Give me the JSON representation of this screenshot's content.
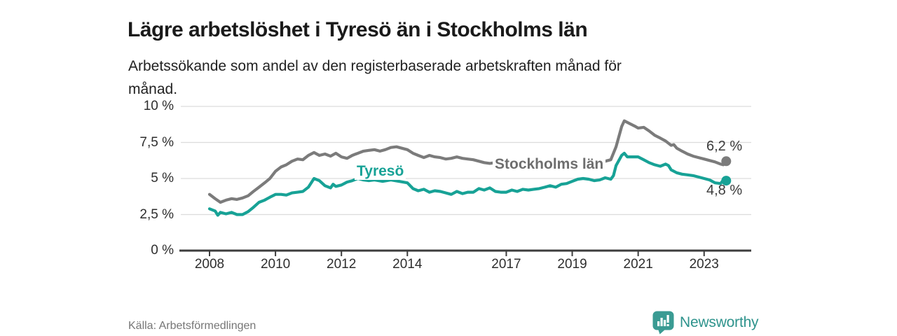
{
  "title": "Lägre arbetslöshet i Tyresö än i Stockholms län",
  "subtitle": "Arbetssökande som andel av den registerbaserade arbetskraften månad för månad.",
  "source": "Källa: Arbetsförmedlingen",
  "brand": {
    "name": "Newsworthy",
    "icon": "bar-chart-speech-bubble-icon",
    "color": "#2e938c"
  },
  "colors": {
    "tyreso": "#17a296",
    "stockholm": "#7b7b7b",
    "grid": "#dcdcdc",
    "axis": "#3d3d3d",
    "tick_text": "#2e2e2e",
    "title_text": "#1a1a1a"
  },
  "chart_data": {
    "type": "line",
    "title": "Lägre arbetslöshet i Tyresö än i Stockholms län",
    "xlabel": "",
    "ylabel": "Arbetssökande som andel av den registerbaserade arbetskraften",
    "xlim": [
      2008,
      2023.85
    ],
    "ylim": [
      0,
      10
    ],
    "grid": true,
    "legend_position": "inline-labels-on-lines",
    "y_ticks": [
      {
        "value": 0,
        "label": "0 %"
      },
      {
        "value": 2.5,
        "label": "2,5 %"
      },
      {
        "value": 5,
        "label": "5 %"
      },
      {
        "value": 7.5,
        "label": "7,5 %"
      },
      {
        "value": 10,
        "label": "10 %"
      }
    ],
    "x_ticks": [
      {
        "year": 2008,
        "label": "2008"
      },
      {
        "year": 2010,
        "label": "2010"
      },
      {
        "year": 2012,
        "label": "2012"
      },
      {
        "year": 2014,
        "label": "2014"
      },
      {
        "year": 2017,
        "label": "2017"
      },
      {
        "year": 2019,
        "label": "2019"
      },
      {
        "year": 2021,
        "label": "2021"
      },
      {
        "year": 2023,
        "label": "2023"
      }
    ],
    "series": [
      {
        "id": "stockholm",
        "name": "Stockholms län",
        "color": "#7b7b7b",
        "end_label": "6,2 %",
        "end_value": 6.2,
        "x": [
          2008.0,
          2008.17,
          2008.33,
          2008.5,
          2008.67,
          2008.83,
          2009.0,
          2009.17,
          2009.33,
          2009.5,
          2009.67,
          2009.83,
          2010.0,
          2010.17,
          2010.33,
          2010.5,
          2010.67,
          2010.83,
          2011.0,
          2011.17,
          2011.33,
          2011.5,
          2011.67,
          2011.83,
          2012.0,
          2012.17,
          2012.33,
          2012.5,
          2012.67,
          2012.83,
          2013.0,
          2013.17,
          2013.33,
          2013.5,
          2013.67,
          2013.83,
          2014.0,
          2014.17,
          2014.33,
          2014.5,
          2014.67,
          2014.83,
          2015.0,
          2015.17,
          2015.33,
          2015.5,
          2015.67,
          2015.83,
          2016.0,
          2016.17,
          2016.33,
          2016.5,
          2016.67,
          2016.83,
          2017.0,
          2017.5,
          2018.0,
          2018.5,
          2019.0,
          2019.5,
          2019.83,
          2020.0,
          2020.17,
          2020.33,
          2020.5,
          2020.58,
          2020.75,
          2020.92,
          2021.0,
          2021.17,
          2021.33,
          2021.5,
          2021.67,
          2021.83,
          2022.0,
          2022.08,
          2022.17,
          2022.33,
          2022.5,
          2022.67,
          2022.83,
          2023.0,
          2023.17,
          2023.33,
          2023.5,
          2023.58,
          2023.67
        ],
        "values": [
          3.9,
          3.6,
          3.35,
          3.5,
          3.6,
          3.55,
          3.65,
          3.8,
          4.1,
          4.4,
          4.7,
          5.0,
          5.5,
          5.8,
          5.95,
          6.2,
          6.35,
          6.3,
          6.6,
          6.8,
          6.6,
          6.7,
          6.55,
          6.75,
          6.5,
          6.4,
          6.6,
          6.75,
          6.9,
          6.95,
          7.0,
          6.9,
          7.0,
          7.15,
          7.2,
          7.1,
          7.0,
          6.75,
          6.6,
          6.45,
          6.6,
          6.5,
          6.45,
          6.35,
          6.4,
          6.5,
          6.4,
          6.35,
          6.3,
          6.2,
          6.1,
          6.05,
          6.1,
          6.2,
          6.15,
          6.05,
          6.0,
          6.0,
          6.05,
          6.1,
          6.15,
          6.2,
          6.3,
          7.2,
          8.6,
          9.0,
          8.8,
          8.6,
          8.5,
          8.55,
          8.3,
          8.0,
          7.8,
          7.6,
          7.3,
          7.35,
          7.1,
          6.9,
          6.7,
          6.55,
          6.45,
          6.35,
          6.25,
          6.15,
          6.0,
          5.95,
          6.2
        ]
      },
      {
        "id": "tyreso",
        "name": "Tyresö",
        "color": "#17a296",
        "end_label": "4,8 %",
        "end_value": 4.8,
        "x": [
          2008.0,
          2008.17,
          2008.25,
          2008.33,
          2008.5,
          2008.67,
          2008.83,
          2009.0,
          2009.17,
          2009.33,
          2009.5,
          2009.67,
          2009.83,
          2010.0,
          2010.17,
          2010.33,
          2010.5,
          2010.67,
          2010.83,
          2011.0,
          2011.17,
          2011.33,
          2011.5,
          2011.67,
          2011.75,
          2011.83,
          2012.0,
          2012.17,
          2012.33,
          2012.5,
          2012.67,
          2012.83,
          2013.0,
          2013.25,
          2013.5,
          2013.75,
          2014.0,
          2014.17,
          2014.33,
          2014.5,
          2014.67,
          2014.83,
          2015.0,
          2015.17,
          2015.33,
          2015.5,
          2015.67,
          2015.83,
          2016.0,
          2016.17,
          2016.33,
          2016.5,
          2016.67,
          2016.83,
          2017.0,
          2017.17,
          2017.33,
          2017.5,
          2017.67,
          2017.83,
          2018.0,
          2018.17,
          2018.33,
          2018.5,
          2018.67,
          2018.83,
          2019.0,
          2019.17,
          2019.33,
          2019.5,
          2019.67,
          2019.83,
          2020.0,
          2020.17,
          2020.25,
          2020.33,
          2020.5,
          2020.58,
          2020.67,
          2020.83,
          2021.0,
          2021.17,
          2021.33,
          2021.5,
          2021.67,
          2021.83,
          2021.92,
          2022.0,
          2022.17,
          2022.33,
          2022.5,
          2022.67,
          2022.83,
          2023.0,
          2023.17,
          2023.33,
          2023.5,
          2023.58,
          2023.67
        ],
        "values": [
          2.9,
          2.75,
          2.45,
          2.65,
          2.55,
          2.65,
          2.5,
          2.5,
          2.7,
          3.0,
          3.35,
          3.5,
          3.7,
          3.9,
          3.9,
          3.85,
          4.0,
          4.05,
          4.1,
          4.4,
          5.0,
          4.85,
          4.5,
          4.35,
          4.6,
          4.45,
          4.55,
          4.75,
          4.85,
          5.0,
          4.9,
          4.85,
          4.9,
          4.8,
          4.9,
          4.8,
          4.7,
          4.3,
          4.15,
          4.25,
          4.05,
          4.15,
          4.1,
          4.0,
          3.9,
          4.1,
          3.95,
          4.05,
          4.05,
          4.3,
          4.2,
          4.35,
          4.1,
          4.05,
          4.05,
          4.2,
          4.1,
          4.25,
          4.2,
          4.25,
          4.3,
          4.4,
          4.5,
          4.4,
          4.6,
          4.65,
          4.8,
          4.95,
          5.0,
          4.95,
          4.85,
          4.9,
          5.05,
          4.95,
          5.2,
          5.9,
          6.6,
          6.75,
          6.5,
          6.5,
          6.5,
          6.3,
          6.1,
          5.95,
          5.85,
          6.0,
          5.9,
          5.6,
          5.4,
          5.3,
          5.25,
          5.2,
          5.1,
          5.0,
          4.9,
          4.7,
          4.65,
          4.9,
          4.85
        ]
      }
    ]
  }
}
